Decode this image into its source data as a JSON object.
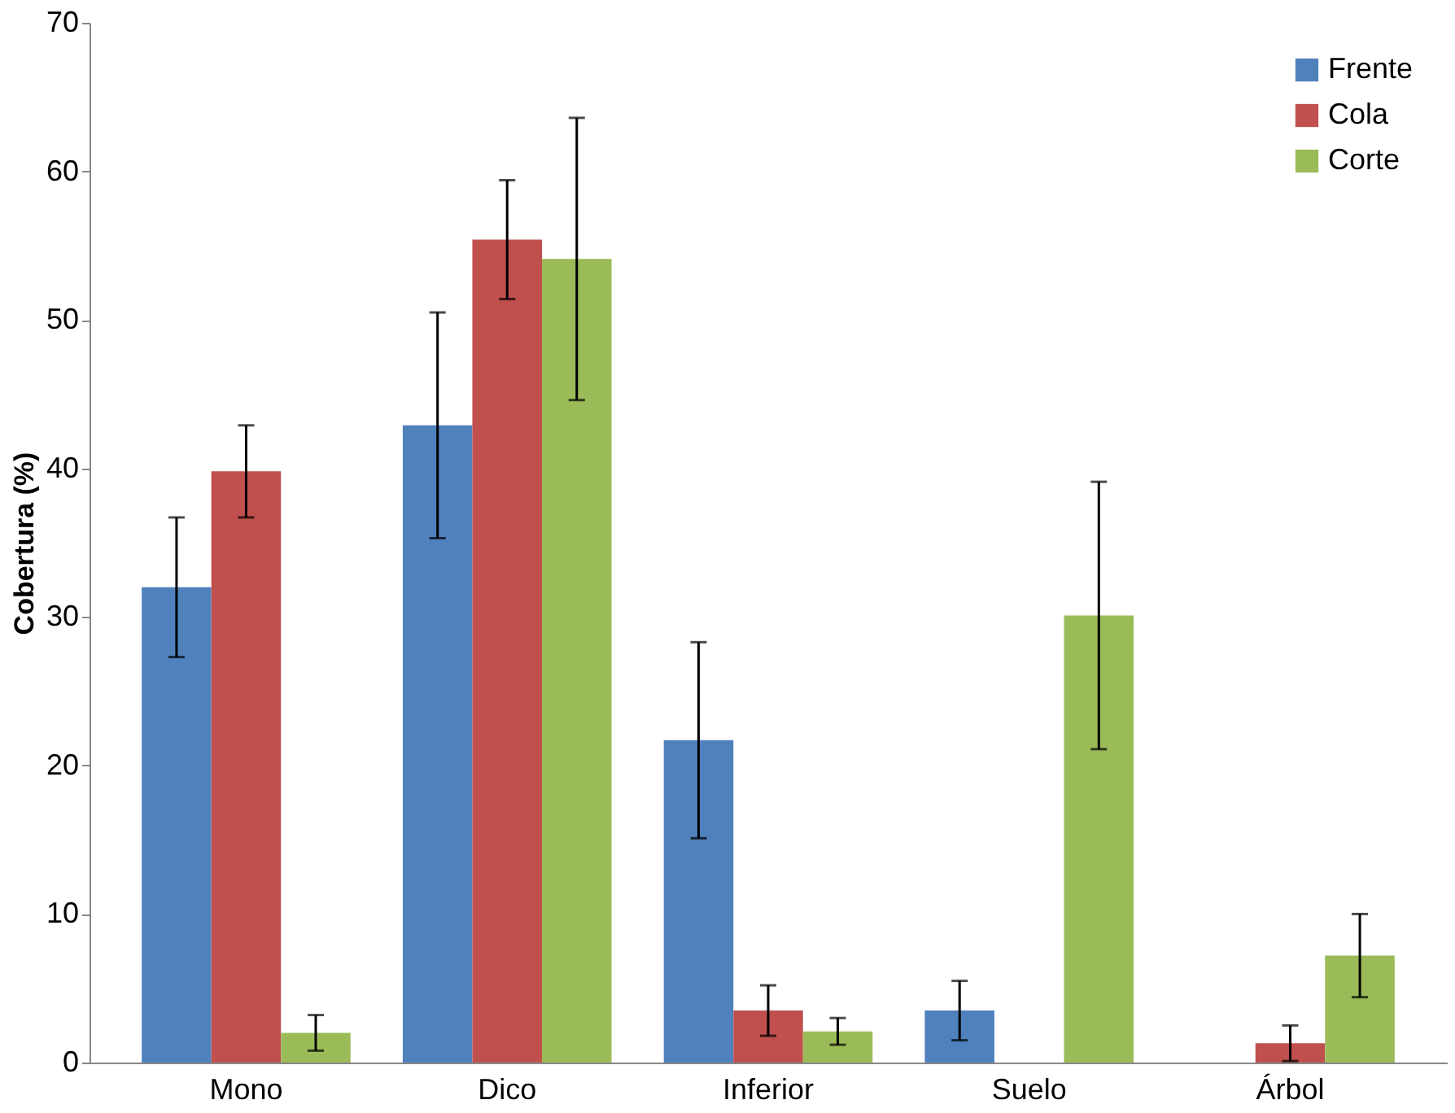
{
  "chart_data": {
    "type": "bar",
    "ylabel": "Cobertura (%)",
    "categories": [
      "Mono",
      "Dico",
      "Inferior",
      "Suelo",
      "Árbol"
    ],
    "series": [
      {
        "name": "Frente",
        "color": "#4f81bd",
        "values": [
          32.0,
          42.9,
          21.7,
          3.5,
          null
        ],
        "errors": [
          4.7,
          7.6,
          6.6,
          2.0,
          null
        ]
      },
      {
        "name": "Cola",
        "color": "#c0504d",
        "values": [
          39.8,
          55.4,
          3.5,
          null,
          1.3
        ],
        "errors": [
          3.1,
          4.0,
          1.7,
          null,
          1.2
        ]
      },
      {
        "name": "Corte",
        "color": "#9bbb59",
        "values": [
          2.0,
          54.1,
          2.1,
          30.1,
          7.2
        ],
        "errors": [
          1.2,
          9.5,
          0.9,
          9.0,
          2.8
        ]
      }
    ],
    "ylim": [
      0,
      70
    ],
    "yticks": [
      0,
      10,
      20,
      30,
      40,
      50,
      60,
      70
    ],
    "grid": false,
    "legend": "top right"
  }
}
